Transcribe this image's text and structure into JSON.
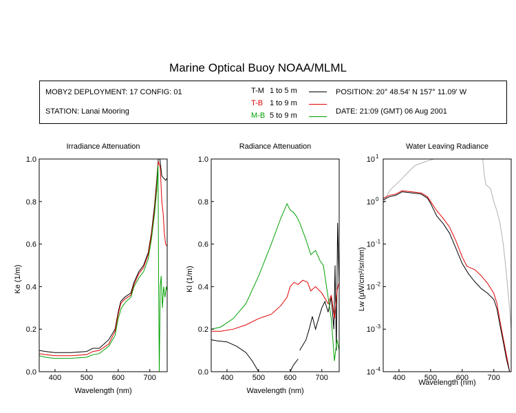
{
  "title": "Marine Optical Buoy NOAA/MLML",
  "info": {
    "deployment": "MOBY2 DEPLOYMENT: 17 CONFIG: 01",
    "station": "STATION: Lanai Mooring",
    "position": "POSITION: 20° 48.54' N   157° 11.09' W",
    "date": "DATE: 21:09 (GMT) 06 Aug 2001",
    "legend": [
      {
        "code": "T-M",
        "range": "1 to 5  m",
        "color": "#000000"
      },
      {
        "code": "T-B",
        "range": "1 to 9  m",
        "color": "#e00000"
      },
      {
        "code": "M-B",
        "range": "5 to 9  m",
        "color": "#00a000"
      }
    ]
  },
  "chart_data": [
    {
      "type": "line",
      "title": "Irradiance Attenuation",
      "xlabel": "Wavelength (nm)",
      "ylabel": "Ke  (1/m)",
      "xlim": [
        350,
        755
      ],
      "ylim": [
        0,
        1.0
      ],
      "xticks": [
        400,
        500,
        600,
        700
      ],
      "yticks": [
        0.0,
        0.2,
        0.4,
        0.6,
        0.8,
        1.0
      ],
      "ytick_labels": [
        "0.0",
        "0.2",
        "0.4",
        "0.6",
        "0.8",
        "1.0"
      ],
      "series": [
        {
          "color": "#000000",
          "points": [
            [
              350,
              0.1
            ],
            [
              370,
              0.095
            ],
            [
              400,
              0.09
            ],
            [
              450,
              0.09
            ],
            [
              500,
              0.095
            ],
            [
              520,
              0.11
            ],
            [
              540,
              0.11
            ],
            [
              570,
              0.15
            ],
            [
              590,
              0.2
            ],
            [
              600,
              0.28
            ],
            [
              608,
              0.33
            ],
            [
              620,
              0.35
            ],
            [
              640,
              0.37
            ],
            [
              650,
              0.42
            ],
            [
              665,
              0.47
            ],
            [
              680,
              0.5
            ],
            [
              695,
              0.56
            ],
            [
              705,
              0.65
            ],
            [
              715,
              0.78
            ],
            [
              722,
              0.9
            ],
            [
              727,
              1.0
            ],
            [
              732,
              1.0
            ],
            [
              738,
              0.92
            ],
            [
              750,
              0.9
            ],
            [
              755,
              0.91
            ]
          ]
        },
        {
          "color": "#e00000",
          "points": [
            [
              350,
              0.085
            ],
            [
              370,
              0.08
            ],
            [
              400,
              0.075
            ],
            [
              450,
              0.075
            ],
            [
              500,
              0.08
            ],
            [
              520,
              0.095
            ],
            [
              540,
              0.1
            ],
            [
              570,
              0.13
            ],
            [
              590,
              0.19
            ],
            [
              600,
              0.27
            ],
            [
              608,
              0.32
            ],
            [
              620,
              0.34
            ],
            [
              640,
              0.36
            ],
            [
              650,
              0.41
            ],
            [
              665,
              0.46
            ],
            [
              680,
              0.49
            ],
            [
              695,
              0.55
            ],
            [
              705,
              0.64
            ],
            [
              715,
              0.76
            ],
            [
              722,
              0.88
            ],
            [
              727,
              0.99
            ],
            [
              733,
              0.96
            ],
            [
              738,
              0.8
            ],
            [
              742,
              0.75
            ],
            [
              746,
              0.65
            ],
            [
              750,
              0.6
            ],
            [
              755,
              0.59
            ]
          ]
        },
        {
          "color": "#00a000",
          "points": [
            [
              350,
              0.075
            ],
            [
              370,
              0.068
            ],
            [
              400,
              0.062
            ],
            [
              450,
              0.063
            ],
            [
              500,
              0.068
            ],
            [
              520,
              0.08
            ],
            [
              540,
              0.085
            ],
            [
              570,
              0.12
            ],
            [
              590,
              0.17
            ],
            [
              600,
              0.25
            ],
            [
              610,
              0.3
            ],
            [
              625,
              0.33
            ],
            [
              640,
              0.35
            ],
            [
              650,
              0.4
            ],
            [
              665,
              0.44
            ],
            [
              680,
              0.47
            ],
            [
              695,
              0.53
            ],
            [
              705,
              0.62
            ],
            [
              715,
              0.74
            ],
            [
              722,
              0.85
            ],
            [
              726,
              0.97
            ],
            [
              728,
              0.4
            ],
            [
              730,
              0.0
            ],
            [
              733,
              0.4
            ],
            [
              736,
              0.45
            ],
            [
              740,
              0.3
            ],
            [
              744,
              0.4
            ],
            [
              748,
              0.35
            ],
            [
              752,
              0.4
            ],
            [
              755,
              0.38
            ]
          ]
        }
      ]
    },
    {
      "type": "line",
      "title": "Radiance Attenuation",
      "xlabel": "Wavelength (nm)",
      "ylabel": "Kl  (1/m)",
      "xlim": [
        350,
        755
      ],
      "ylim": [
        0,
        1.0
      ],
      "xticks": [
        400,
        500,
        600,
        700
      ],
      "yticks": [
        0.0,
        0.2,
        0.4,
        0.6,
        0.8,
        1.0
      ],
      "ytick_labels": [
        "0.0",
        "0.2",
        "0.4",
        "0.6",
        "0.8",
        "1.0"
      ],
      "series": [
        {
          "color": "#000000",
          "points": [
            [
              350,
              0.15
            ],
            [
              370,
              0.145
            ],
            [
              400,
              0.14
            ],
            [
              430,
              0.12
            ],
            [
              460,
              0.09
            ],
            [
              480,
              0.05
            ],
            [
              500,
              0.0
            ]
          ]
        },
        {
          "color": "#000000",
          "points": [
            [
              600,
              0.0
            ],
            [
              610,
              0.03
            ],
            [
              625,
              0.06
            ]
          ]
        },
        {
          "color": "#000000",
          "points": [
            [
              630,
              0.1
            ],
            [
              650,
              0.15
            ],
            [
              660,
              0.2
            ],
            [
              670,
              0.26
            ],
            [
              680,
              0.2
            ],
            [
              690,
              0.25
            ],
            [
              700,
              0.3
            ],
            [
              710,
              0.33
            ],
            [
              720,
              0.28
            ],
            [
              730,
              0.35
            ],
            [
              738,
              0.2
            ],
            [
              742,
              0.5
            ],
            [
              746,
              0.1
            ],
            [
              750,
              0.7
            ],
            [
              755,
              0.4
            ]
          ]
        },
        {
          "color": "#e00000",
          "points": [
            [
              350,
              0.19
            ],
            [
              380,
              0.19
            ],
            [
              420,
              0.2
            ],
            [
              460,
              0.22
            ],
            [
              500,
              0.25
            ],
            [
              540,
              0.27
            ],
            [
              570,
              0.31
            ],
            [
              590,
              0.35
            ],
            [
              600,
              0.4
            ],
            [
              612,
              0.42
            ],
            [
              625,
              0.41
            ],
            [
              640,
              0.43
            ],
            [
              655,
              0.42
            ],
            [
              665,
              0.38
            ],
            [
              680,
              0.4
            ],
            [
              700,
              0.37
            ],
            [
              720,
              0.32
            ],
            [
              730,
              0.36
            ],
            [
              740,
              0.25
            ],
            [
              748,
              0.38
            ],
            [
              755,
              0.42
            ]
          ]
        },
        {
          "color": "#00a000",
          "points": [
            [
              350,
              0.2
            ],
            [
              380,
              0.21
            ],
            [
              420,
              0.25
            ],
            [
              460,
              0.32
            ],
            [
              500,
              0.45
            ],
            [
              540,
              0.6
            ],
            [
              570,
              0.72
            ],
            [
              590,
              0.79
            ],
            [
              600,
              0.76
            ],
            [
              610,
              0.75
            ],
            [
              620,
              0.73
            ],
            [
              630,
              0.7
            ],
            [
              650,
              0.62
            ],
            [
              665,
              0.55
            ],
            [
              680,
              0.57
            ],
            [
              695,
              0.52
            ],
            [
              705,
              0.5
            ],
            [
              720,
              0.35
            ],
            [
              730,
              0.25
            ],
            [
              740,
              0.05
            ],
            [
              748,
              0.15
            ],
            [
              755,
              0.1
            ]
          ]
        }
      ]
    },
    {
      "type": "line",
      "title": "Water Leaving Radiance",
      "xlabel": "Wavelength (nm)",
      "ylabel": "Lw  (μW/cm²/sr/nm)",
      "yscale": "log",
      "xlim": [
        350,
        755
      ],
      "ylim": [
        0.0001,
        10
      ],
      "xticks": [
        400,
        500,
        600,
        700
      ],
      "ytick_labels": [
        "10",
        "10",
        "10",
        "10",
        "10",
        "10"
      ],
      "ytick_exponents": [
        "-4",
        "-3",
        "-2",
        "-1",
        "0",
        "1"
      ],
      "series": [
        {
          "color": "#b0b0b0",
          "points": [
            [
              350,
              0.9
            ],
            [
              370,
              1.8
            ],
            [
              390,
              2.5
            ],
            [
              410,
              3.5
            ],
            [
              430,
              5
            ],
            [
              450,
              7
            ],
            [
              470,
              8
            ],
            [
              490,
              9
            ],
            [
              510,
              10
            ]
          ]
        },
        {
          "color": "#b0b0b0",
          "points": [
            [
              665,
              10
            ],
            [
              670,
              4
            ],
            [
              675,
              2.5
            ],
            [
              690,
              2
            ],
            [
              700,
              1.0
            ],
            [
              710,
              0.6
            ],
            [
              720,
              0.3
            ],
            [
              730,
              0.1
            ],
            [
              740,
              0.02
            ],
            [
              750,
              0.003
            ],
            [
              755,
              0.001
            ]
          ]
        },
        {
          "color": "#e00000",
          "points": [
            [
              350,
              1.2
            ],
            [
              370,
              1.4
            ],
            [
              390,
              1.5
            ],
            [
              410,
              1.8
            ],
            [
              440,
              1.7
            ],
            [
              470,
              1.6
            ],
            [
              490,
              1.3
            ],
            [
              500,
              1.0
            ],
            [
              520,
              0.6
            ],
            [
              540,
              0.4
            ],
            [
              560,
              0.25
            ],
            [
              580,
              0.12
            ],
            [
              600,
              0.05
            ],
            [
              615,
              0.03
            ],
            [
              640,
              0.025
            ],
            [
              660,
              0.018
            ],
            [
              680,
              0.012
            ],
            [
              700,
              0.007
            ],
            [
              710,
              0.004
            ],
            [
              720,
              0.0015
            ],
            [
              730,
              0.0006
            ],
            [
              740,
              0.00025
            ],
            [
              750,
              0.0001
            ]
          ]
        },
        {
          "color": "#000000",
          "points": [
            [
              350,
              1.1
            ],
            [
              370,
              1.3
            ],
            [
              390,
              1.4
            ],
            [
              410,
              1.7
            ],
            [
              440,
              1.6
            ],
            [
              470,
              1.5
            ],
            [
              490,
              1.2
            ],
            [
              500,
              0.9
            ],
            [
              520,
              0.45
            ],
            [
              540,
              0.3
            ],
            [
              560,
              0.18
            ],
            [
              580,
              0.08
            ],
            [
              600,
              0.035
            ],
            [
              620,
              0.02
            ],
            [
              640,
              0.013
            ],
            [
              660,
              0.009
            ],
            [
              680,
              0.007
            ],
            [
              700,
              0.005
            ],
            [
              710,
              0.003
            ],
            [
              720,
              0.0012
            ],
            [
              730,
              0.0005
            ],
            [
              740,
              0.0002
            ],
            [
              750,
              0.0001
            ]
          ]
        }
      ]
    }
  ]
}
